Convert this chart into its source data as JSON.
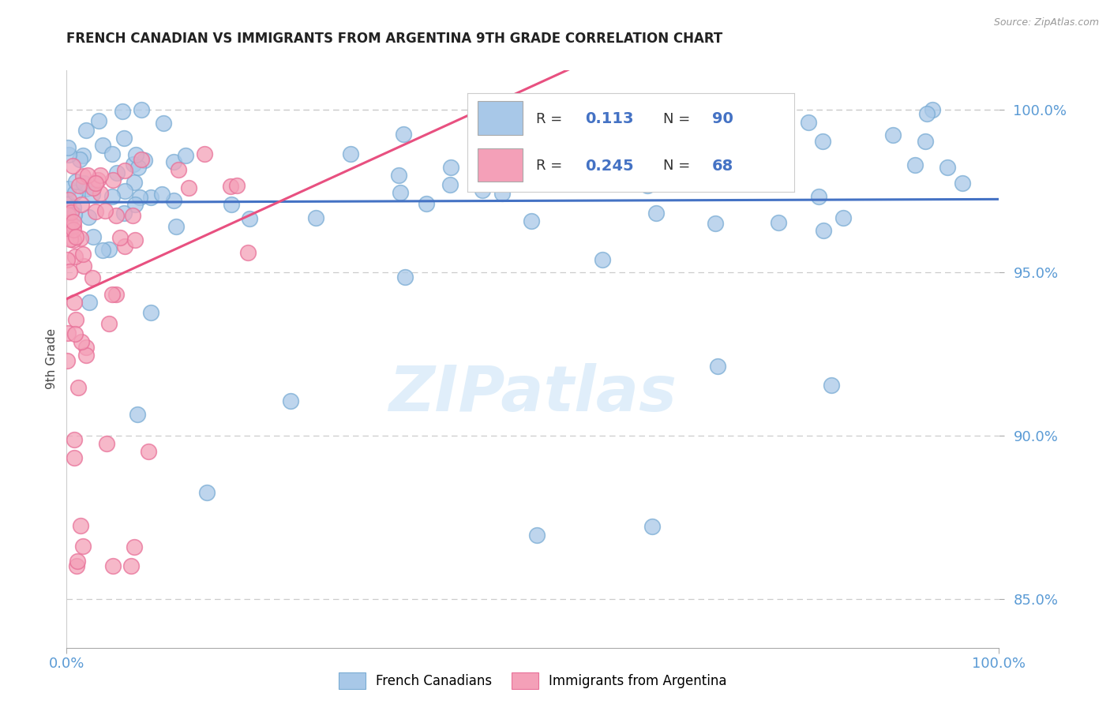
{
  "title": "FRENCH CANADIAN VS IMMIGRANTS FROM ARGENTINA 9TH GRADE CORRELATION CHART",
  "source_text": "Source: ZipAtlas.com",
  "ylabel": "9th Grade",
  "watermark": "ZIPatlas",
  "blue_R": 0.113,
  "blue_N": 90,
  "pink_R": 0.245,
  "pink_N": 68,
  "blue_color": "#a8c8e8",
  "pink_color": "#f4a0b8",
  "blue_edge_color": "#7aacd4",
  "pink_edge_color": "#e87098",
  "blue_trend_color": "#4472c4",
  "pink_trend_color": "#e85080",
  "legend_blue_label": "French Canadians",
  "legend_pink_label": "Immigrants from Argentina",
  "xmin": 0.0,
  "xmax": 100.0,
  "ymin": 83.5,
  "ymax": 101.2,
  "yticks": [
    85.0,
    90.0,
    95.0,
    100.0
  ],
  "grid_color": "#cccccc",
  "title_color": "#222222",
  "tick_color": "#5b9bd5",
  "watermark_color": "#cce4f7"
}
